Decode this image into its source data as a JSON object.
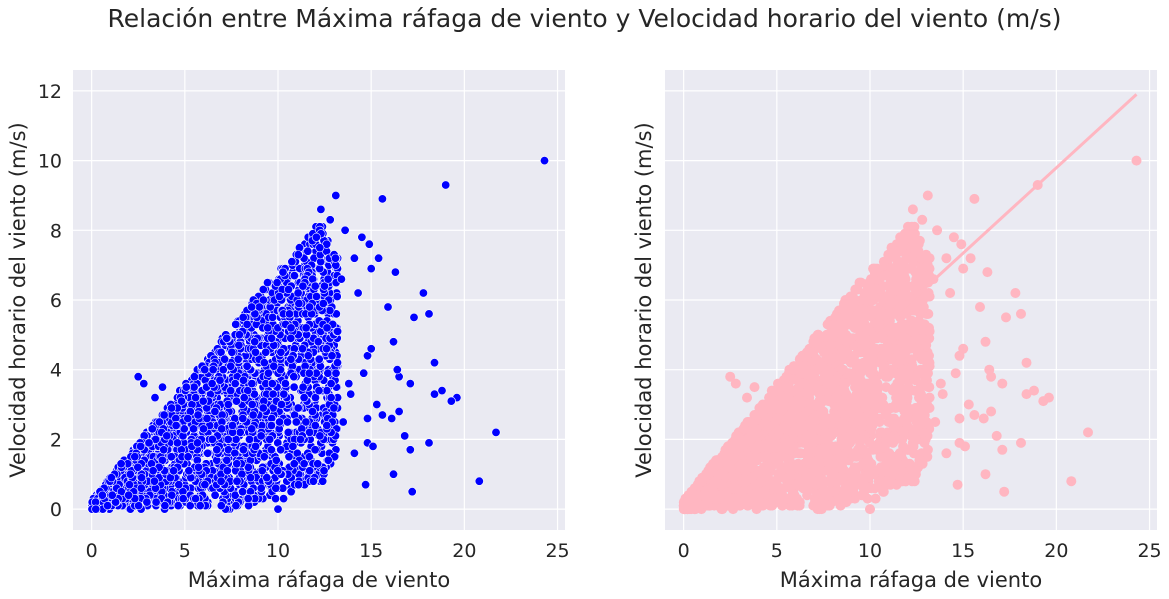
{
  "figure": {
    "suptitle": "Relación entre Máxima ráfaga de viento y Velocidad horario del viento (m/s)",
    "background": "#eaeaf2",
    "grid_color": "#ffffff"
  },
  "chart_data": [
    {
      "type": "scatter",
      "xlabel": "Máxima ráfaga de viento",
      "ylabel": "Velocidad horario del viento (m/s)",
      "xlim": [
        -1,
        25.4
      ],
      "ylim": [
        -0.6,
        12.6
      ],
      "xticks": [
        0,
        5,
        10,
        15,
        20,
        25
      ],
      "yticks": [
        0,
        2,
        4,
        6,
        8,
        10,
        12
      ],
      "show_ytick_labels": true,
      "grid": true,
      "marker_color": "#0000ff",
      "marker_edge": "#ffffff",
      "points": [
        [
          24.3,
          10.0
        ],
        [
          19.0,
          9.3
        ],
        [
          15.6,
          8.9
        ],
        [
          13.1,
          9.0
        ],
        [
          12.3,
          8.6
        ],
        [
          12.8,
          8.3
        ],
        [
          13.6,
          8.0
        ],
        [
          14.5,
          7.8
        ],
        [
          14.9,
          7.6
        ],
        [
          15.4,
          7.2
        ],
        [
          16.3,
          6.8
        ],
        [
          15.0,
          6.9
        ],
        [
          14.1,
          7.2
        ],
        [
          15.9,
          5.8
        ],
        [
          17.8,
          6.2
        ],
        [
          18.1,
          5.6
        ],
        [
          17.3,
          5.5
        ],
        [
          16.2,
          4.8
        ],
        [
          16.5,
          3.8
        ],
        [
          17.1,
          3.6
        ],
        [
          18.4,
          3.3
        ],
        [
          18.8,
          3.4
        ],
        [
          19.6,
          3.2
        ],
        [
          19.3,
          3.1
        ],
        [
          15.3,
          3.0
        ],
        [
          16.1,
          2.6
        ],
        [
          14.8,
          2.6
        ],
        [
          15.6,
          2.7
        ],
        [
          16.5,
          2.8
        ],
        [
          16.8,
          2.1
        ],
        [
          17.1,
          1.7
        ],
        [
          18.1,
          1.9
        ],
        [
          21.7,
          2.2
        ],
        [
          20.8,
          0.8
        ],
        [
          14.8,
          1.9
        ],
        [
          15.1,
          1.8
        ],
        [
          14.1,
          1.6
        ],
        [
          16.2,
          1.0
        ],
        [
          17.2,
          0.5
        ],
        [
          14.7,
          0.7
        ],
        [
          12.4,
          0.8
        ],
        [
          11.1,
          0.7
        ],
        [
          10.3,
          0.3
        ],
        [
          10.0,
          0.0
        ],
        [
          8.4,
          0.3
        ],
        [
          9.1,
          0.6
        ],
        [
          14.6,
          3.9
        ],
        [
          13.8,
          3.6
        ],
        [
          14.8,
          4.4
        ],
        [
          2.5,
          3.8
        ],
        [
          2.8,
          3.6
        ],
        [
          3.8,
          3.5
        ],
        [
          3.4,
          3.2
        ],
        [
          12.7,
          1.4
        ],
        [
          11.7,
          1.1
        ],
        [
          11.4,
          1.3
        ],
        [
          11.9,
          0.8
        ],
        [
          10.8,
          1.8
        ],
        [
          12.0,
          2.4
        ],
        [
          13.5,
          2.5
        ],
        [
          15.0,
          4.6
        ],
        [
          16.4,
          4.0
        ],
        [
          18.4,
          4.2
        ],
        [
          14.3,
          6.2
        ],
        [
          13.4,
          6.6
        ],
        [
          13.2,
          5.1
        ],
        [
          12.6,
          4.6
        ],
        [
          13.9,
          3.3
        ],
        [
          13.0,
          2.9
        ],
        [
          11.2,
          2.0
        ],
        [
          9.4,
          0.9
        ],
        [
          8.1,
          0.5
        ],
        [
          7.8,
          0.8
        ]
      ],
      "dense_band": [
        [
          0,
          0,
          0.2
        ],
        [
          2.5,
          0,
          2.6
        ],
        [
          5,
          0,
          4.5
        ],
        [
          7.5,
          0,
          6.5
        ],
        [
          10,
          0.3,
          7.8
        ],
        [
          12.3,
          0.8,
          8.2
        ],
        [
          13.1,
          1.3,
          7.3
        ],
        [
          11.5,
          0.5,
          5.5
        ]
      ]
    },
    {
      "type": "scatter",
      "xlabel": "Máxima ráfaga de viento",
      "ylabel": "Velocidad horario del viento (m/s)",
      "xlim": [
        -1,
        25.4
      ],
      "ylim": [
        -0.6,
        12.6
      ],
      "xticks": [
        0,
        5,
        10,
        15,
        20,
        25
      ],
      "yticks": [
        0,
        2,
        4,
        6,
        8,
        10,
        12
      ],
      "show_ytick_labels": false,
      "grid": true,
      "marker_color": "#ffb6c1",
      "regression_line": {
        "x": [
          0,
          24.3
        ],
        "y": [
          0.0,
          11.9
        ],
        "color": "#ffb6c1"
      },
      "points": [
        [
          24.3,
          10.0
        ],
        [
          19.0,
          9.3
        ],
        [
          15.6,
          8.9
        ],
        [
          13.1,
          9.0
        ],
        [
          12.3,
          8.6
        ],
        [
          12.8,
          8.3
        ],
        [
          13.6,
          8.0
        ],
        [
          14.5,
          7.8
        ],
        [
          14.9,
          7.6
        ],
        [
          15.4,
          7.2
        ],
        [
          16.3,
          6.8
        ],
        [
          15.0,
          6.9
        ],
        [
          14.1,
          7.2
        ],
        [
          15.9,
          5.8
        ],
        [
          17.8,
          6.2
        ],
        [
          18.1,
          5.6
        ],
        [
          17.3,
          5.5
        ],
        [
          16.2,
          4.8
        ],
        [
          16.5,
          3.8
        ],
        [
          17.1,
          3.6
        ],
        [
          18.4,
          3.3
        ],
        [
          18.8,
          3.4
        ],
        [
          19.6,
          3.2
        ],
        [
          19.3,
          3.1
        ],
        [
          15.3,
          3.0
        ],
        [
          16.1,
          2.6
        ],
        [
          14.8,
          2.6
        ],
        [
          15.6,
          2.7
        ],
        [
          16.5,
          2.8
        ],
        [
          16.8,
          2.1
        ],
        [
          17.1,
          1.7
        ],
        [
          18.1,
          1.9
        ],
        [
          21.7,
          2.2
        ],
        [
          20.8,
          0.8
        ],
        [
          14.8,
          1.9
        ],
        [
          15.1,
          1.8
        ],
        [
          14.1,
          1.6
        ],
        [
          16.2,
          1.0
        ],
        [
          17.2,
          0.5
        ],
        [
          14.7,
          0.7
        ],
        [
          12.4,
          0.8
        ],
        [
          11.1,
          0.7
        ],
        [
          10.3,
          0.3
        ],
        [
          10.0,
          0.0
        ],
        [
          8.4,
          0.3
        ],
        [
          9.1,
          0.6
        ],
        [
          14.6,
          3.9
        ],
        [
          13.8,
          3.6
        ],
        [
          14.8,
          4.4
        ],
        [
          2.5,
          3.8
        ],
        [
          2.8,
          3.6
        ],
        [
          3.8,
          3.5
        ],
        [
          3.4,
          3.2
        ],
        [
          12.7,
          1.4
        ],
        [
          11.7,
          1.1
        ],
        [
          11.4,
          1.3
        ],
        [
          11.9,
          0.8
        ],
        [
          10.8,
          1.8
        ],
        [
          12.0,
          2.4
        ],
        [
          13.5,
          2.5
        ],
        [
          15.0,
          4.6
        ],
        [
          16.4,
          4.0
        ],
        [
          18.4,
          4.2
        ],
        [
          14.3,
          6.2
        ],
        [
          13.4,
          6.6
        ],
        [
          13.2,
          5.1
        ],
        [
          12.6,
          4.6
        ],
        [
          13.9,
          3.3
        ],
        [
          13.0,
          2.9
        ],
        [
          11.2,
          2.0
        ],
        [
          9.4,
          0.9
        ],
        [
          8.1,
          0.5
        ],
        [
          7.8,
          0.8
        ]
      ],
      "dense_band": [
        [
          0,
          0,
          0.2
        ],
        [
          2.5,
          0,
          2.6
        ],
        [
          5,
          0,
          4.5
        ],
        [
          7.5,
          0,
          6.5
        ],
        [
          10,
          0.3,
          7.8
        ],
        [
          12.3,
          0.8,
          8.2
        ],
        [
          13.1,
          1.3,
          7.3
        ],
        [
          11.5,
          0.5,
          5.5
        ]
      ]
    }
  ]
}
